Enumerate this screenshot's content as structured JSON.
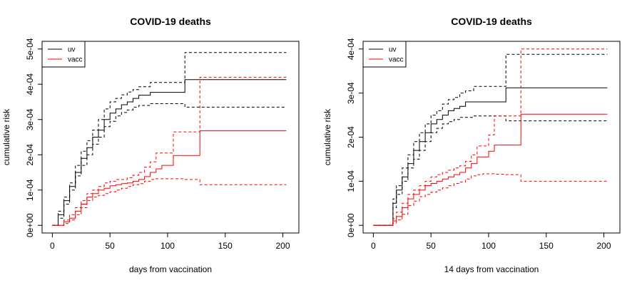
{
  "chart_data": [
    {
      "type": "line",
      "title": "COVID-19 deaths",
      "xlabel": "days from vaccination",
      "ylabel": "cumulative risk",
      "xlim": [
        0,
        205
      ],
      "ylim": [
        0,
        0.0005
      ],
      "xticks": [
        0,
        50,
        100,
        150,
        200
      ],
      "xtick_labels": [
        "0",
        "50",
        "100",
        "150",
        "200"
      ],
      "yticks": [
        0,
        0.0001,
        0.0002,
        0.0003,
        0.0004,
        0.0005
      ],
      "ytick_labels": [
        "0e+00",
        "1e-04",
        "2e-04",
        "3e-04",
        "4e-04",
        "5e-04"
      ],
      "grid": false,
      "legend_position": "top-left",
      "legend": [
        {
          "label": "uv",
          "color": "#000000"
        },
        {
          "label": "vacc",
          "color": "#ff0000"
        }
      ],
      "series": [
        {
          "name": "uv",
          "color": "#000000",
          "dash": "solid",
          "x": [
            0,
            5,
            10,
            15,
            20,
            25,
            30,
            35,
            40,
            45,
            50,
            55,
            60,
            65,
            70,
            75,
            85,
            115,
            128,
            203
          ],
          "y": [
            0,
            3e-05,
            7e-05,
            0.00011,
            0.00015,
            0.00019,
            0.00022,
            0.00025,
            0.00027,
            0.0003,
            0.000318,
            0.00033,
            0.000342,
            0.00035,
            0.00036,
            0.000369,
            0.000377,
            0.000413,
            0.000413,
            0.000413
          ]
        },
        {
          "name": "uv",
          "color": "#000000",
          "dash": "dashed",
          "x": [
            0,
            5,
            10,
            15,
            20,
            25,
            30,
            35,
            40,
            45,
            50,
            55,
            60,
            65,
            70,
            75,
            85,
            115,
            128,
            203
          ],
          "y": [
            0,
            4e-05,
            8e-05,
            0.00012,
            0.00017,
            0.00021,
            0.00024,
            0.00027,
            0.0003,
            0.00033,
            0.00035,
            0.00036,
            0.00037,
            0.000378,
            0.000385,
            0.000393,
            0.000405,
            0.00049,
            0.00049,
            0.00049
          ]
        },
        {
          "name": "uv",
          "color": "#000000",
          "dash": "dashed",
          "x": [
            0,
            5,
            10,
            15,
            20,
            25,
            30,
            35,
            40,
            45,
            50,
            55,
            60,
            65,
            70,
            75,
            85,
            115,
            128,
            203
          ],
          "y": [
            0,
            2e-05,
            6e-05,
            0.0001,
            0.00014,
            0.00017,
            0.0002,
            0.00023,
            0.00025,
            0.00028,
            0.000295,
            0.00031,
            0.00032,
            0.000327,
            0.000335,
            0.00034,
            0.000345,
            0.000335,
            0.000335,
            0.000335
          ]
        },
        {
          "name": "vacc",
          "color": "#ff0000",
          "dash": "solid",
          "x": [
            0,
            5,
            10,
            15,
            20,
            25,
            30,
            35,
            40,
            45,
            50,
            55,
            60,
            65,
            70,
            75,
            80,
            85,
            90,
            95,
            105,
            115,
            128,
            203
          ],
          "y": [
            0,
            0,
            1e-05,
            2e-05,
            4e-05,
            6e-05,
            8e-05,
            9e-05,
            0.0001,
            0.000105,
            0.000112,
            0.000115,
            0.000118,
            0.00012,
            0.000125,
            0.00013,
            0.000138,
            0.00015,
            0.00016,
            0.00017,
            0.000198,
            0.000198,
            0.000268,
            0.000268
          ]
        },
        {
          "name": "vacc",
          "color": "#ff0000",
          "dash": "dashed",
          "x": [
            0,
            5,
            10,
            15,
            20,
            25,
            30,
            35,
            40,
            45,
            50,
            55,
            60,
            65,
            70,
            75,
            80,
            85,
            90,
            95,
            105,
            115,
            128,
            203
          ],
          "y": [
            0,
            0,
            1.5e-05,
            3e-05,
            5e-05,
            7e-05,
            9e-05,
            0.0001,
            0.00011,
            0.00012,
            0.000125,
            0.00013,
            0.00013,
            0.000135,
            0.000142,
            0.00015,
            0.000165,
            0.00018,
            0.000205,
            0.000205,
            0.000265,
            0.000265,
            0.00042,
            0.00042
          ]
        },
        {
          "name": "vacc",
          "color": "#ff0000",
          "dash": "dashed",
          "x": [
            0,
            5,
            10,
            15,
            20,
            25,
            30,
            35,
            40,
            45,
            50,
            55,
            60,
            65,
            70,
            75,
            80,
            85,
            90,
            95,
            105,
            115,
            128,
            203
          ],
          "y": [
            0,
            0,
            5e-06,
            1.5e-05,
            3e-05,
            5e-05,
            7e-05,
            8e-05,
            8.5e-05,
            9e-05,
            9.5e-05,
            0.0001,
            0.000105,
            0.00011,
            0.000115,
            0.000118,
            0.000125,
            0.00013,
            0.000132,
            0.000132,
            0.000132,
            0.00013,
            0.000115,
            0.000115
          ]
        }
      ]
    },
    {
      "type": "line",
      "title": "COVID-19 deaths",
      "xlabel": "14 days from vaccination",
      "ylabel": "cumulative risk",
      "xlim": [
        0,
        205
      ],
      "ylim": [
        0,
        0.0004
      ],
      "xticks": [
        0,
        50,
        100,
        150,
        200
      ],
      "xtick_labels": [
        "0",
        "50",
        "100",
        "150",
        "200"
      ],
      "yticks": [
        0,
        0.0001,
        0.0002,
        0.0003,
        0.0004
      ],
      "ytick_labels": [
        "0e+00",
        "1e-04",
        "2e-04",
        "3e-04",
        "4e-04"
      ],
      "grid": false,
      "legend_position": "top-left",
      "legend": [
        {
          "label": "uv",
          "color": "#000000"
        },
        {
          "label": "vacc",
          "color": "#ff0000"
        }
      ],
      "series": [
        {
          "name": "uv",
          "color": "#000000",
          "dash": "solid",
          "x": [
            0,
            14,
            17,
            20,
            25,
            30,
            35,
            40,
            45,
            50,
            55,
            60,
            65,
            70,
            75,
            80,
            87,
            115,
            128,
            203
          ],
          "y": [
            0,
            0,
            5e-05,
            8e-05,
            0.00011,
            0.00014,
            0.00017,
            0.00019,
            0.00021,
            0.00023,
            0.00024,
            0.00025,
            0.00026,
            0.000265,
            0.00027,
            0.00028,
            0.00028,
            0.000312,
            0.000312,
            0.000312
          ]
        },
        {
          "name": "uv",
          "color": "#000000",
          "dash": "dashed",
          "x": [
            0,
            14,
            17,
            20,
            25,
            30,
            35,
            40,
            45,
            50,
            55,
            60,
            65,
            70,
            75,
            80,
            87,
            115,
            128,
            203
          ],
          "y": [
            0,
            0,
            6e-05,
            9e-05,
            0.00013,
            0.00016,
            0.00019,
            0.00021,
            0.00023,
            0.00025,
            0.00026,
            0.000275,
            0.000285,
            0.00029,
            0.0003,
            0.000305,
            0.000315,
            0.000388,
            0.000388,
            0.000388
          ]
        },
        {
          "name": "uv",
          "color": "#000000",
          "dash": "dashed",
          "x": [
            0,
            14,
            17,
            20,
            25,
            30,
            35,
            40,
            45,
            50,
            55,
            60,
            65,
            70,
            75,
            80,
            87,
            115,
            128,
            203
          ],
          "y": [
            0,
            0,
            4e-05,
            7e-05,
            0.0001,
            0.00013,
            0.00015,
            0.00017,
            0.00019,
            0.00021,
            0.00022,
            0.00023,
            0.000235,
            0.00024,
            0.000245,
            0.000245,
            0.000248,
            0.000237,
            0.000237,
            0.000237
          ]
        },
        {
          "name": "vacc",
          "color": "#ff0000",
          "dash": "solid",
          "x": [
            0,
            14,
            17,
            20,
            25,
            30,
            35,
            40,
            45,
            50,
            55,
            60,
            65,
            70,
            75,
            80,
            85,
            90,
            95,
            100,
            105,
            115,
            128,
            203
          ],
          "y": [
            0,
            0,
            1e-05,
            2e-05,
            4e-05,
            6e-05,
            7e-05,
            8e-05,
            9e-05,
            9.5e-05,
            0.0001,
            0.000105,
            0.00011,
            0.000115,
            0.00012,
            0.00013,
            0.00014,
            0.000155,
            0.000155,
            0.000168,
            0.000182,
            0.000182,
            0.000252,
            0.000252
          ]
        },
        {
          "name": "vacc",
          "color": "#ff0000",
          "dash": "dashed",
          "x": [
            0,
            14,
            17,
            20,
            25,
            30,
            35,
            40,
            45,
            50,
            55,
            60,
            65,
            70,
            75,
            80,
            85,
            90,
            95,
            100,
            105,
            115,
            128,
            203
          ],
          "y": [
            0,
            0,
            1.5e-05,
            3e-05,
            5e-05,
            7e-05,
            8e-05,
            9e-05,
            0.0001,
            0.00011,
            0.000115,
            0.00012,
            0.000125,
            0.00013,
            0.000135,
            0.000145,
            0.00016,
            0.00018,
            0.00018,
            0.000205,
            0.000248,
            0.000248,
            0.0004,
            0.0004
          ]
        },
        {
          "name": "vacc",
          "color": "#ff0000",
          "dash": "dashed",
          "x": [
            0,
            14,
            17,
            20,
            25,
            30,
            35,
            40,
            45,
            50,
            55,
            60,
            65,
            70,
            75,
            80,
            85,
            90,
            95,
            100,
            105,
            115,
            128,
            203
          ],
          "y": [
            0,
            0,
            5e-06,
            1.2e-05,
            2.5e-05,
            4.5e-05,
            5.5e-05,
            6.5e-05,
            7e-05,
            7.5e-05,
            8e-05,
            8.5e-05,
            9e-05,
            9.5e-05,
            9.8e-05,
            0.000105,
            0.000112,
            0.000115,
            0.000117,
            0.000117,
            0.000116,
            0.000115,
            0.0001,
            0.0001
          ]
        }
      ]
    }
  ]
}
